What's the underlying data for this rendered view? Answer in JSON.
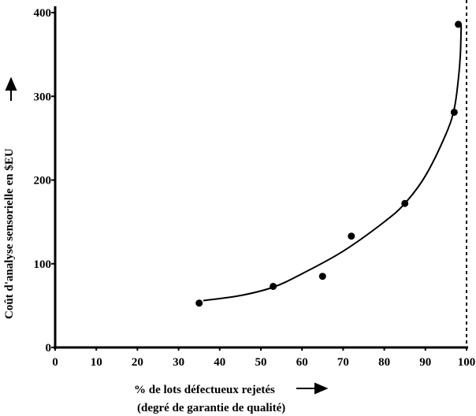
{
  "chart_data": {
    "type": "scatter",
    "title": "",
    "xlabel": "% de lots défectueux rejetés",
    "xlabel2": "(degré de garantie de qualité)",
    "ylabel": "Coût d'analyse sensorielle en $EU",
    "xlim": [
      0,
      100
    ],
    "ylim": [
      0,
      400
    ],
    "xticks": [
      "0",
      "10",
      "20",
      "30",
      "40",
      "50",
      "60",
      "70",
      "80",
      "90",
      "100"
    ],
    "yticks": [
      "0",
      "100",
      "200",
      "300",
      "400"
    ],
    "grid": false,
    "points": [
      {
        "x": 35,
        "y": 53
      },
      {
        "x": 53,
        "y": 73
      },
      {
        "x": 65,
        "y": 85
      },
      {
        "x": 72,
        "y": 133
      },
      {
        "x": 85,
        "y": 172
      },
      {
        "x": 97,
        "y": 281
      },
      {
        "x": 98,
        "y": 386
      }
    ],
    "fit_curve": [
      [
        36,
        56
      ],
      [
        45,
        62
      ],
      [
        53,
        72
      ],
      [
        60,
        88
      ],
      [
        70,
        115
      ],
      [
        80,
        150
      ],
      [
        85,
        172
      ],
      [
        90,
        205
      ],
      [
        95,
        255
      ],
      [
        97,
        285
      ],
      [
        98,
        320
      ],
      [
        98.5,
        350
      ],
      [
        98.7,
        385
      ]
    ],
    "asymptote_x": 100
  }
}
